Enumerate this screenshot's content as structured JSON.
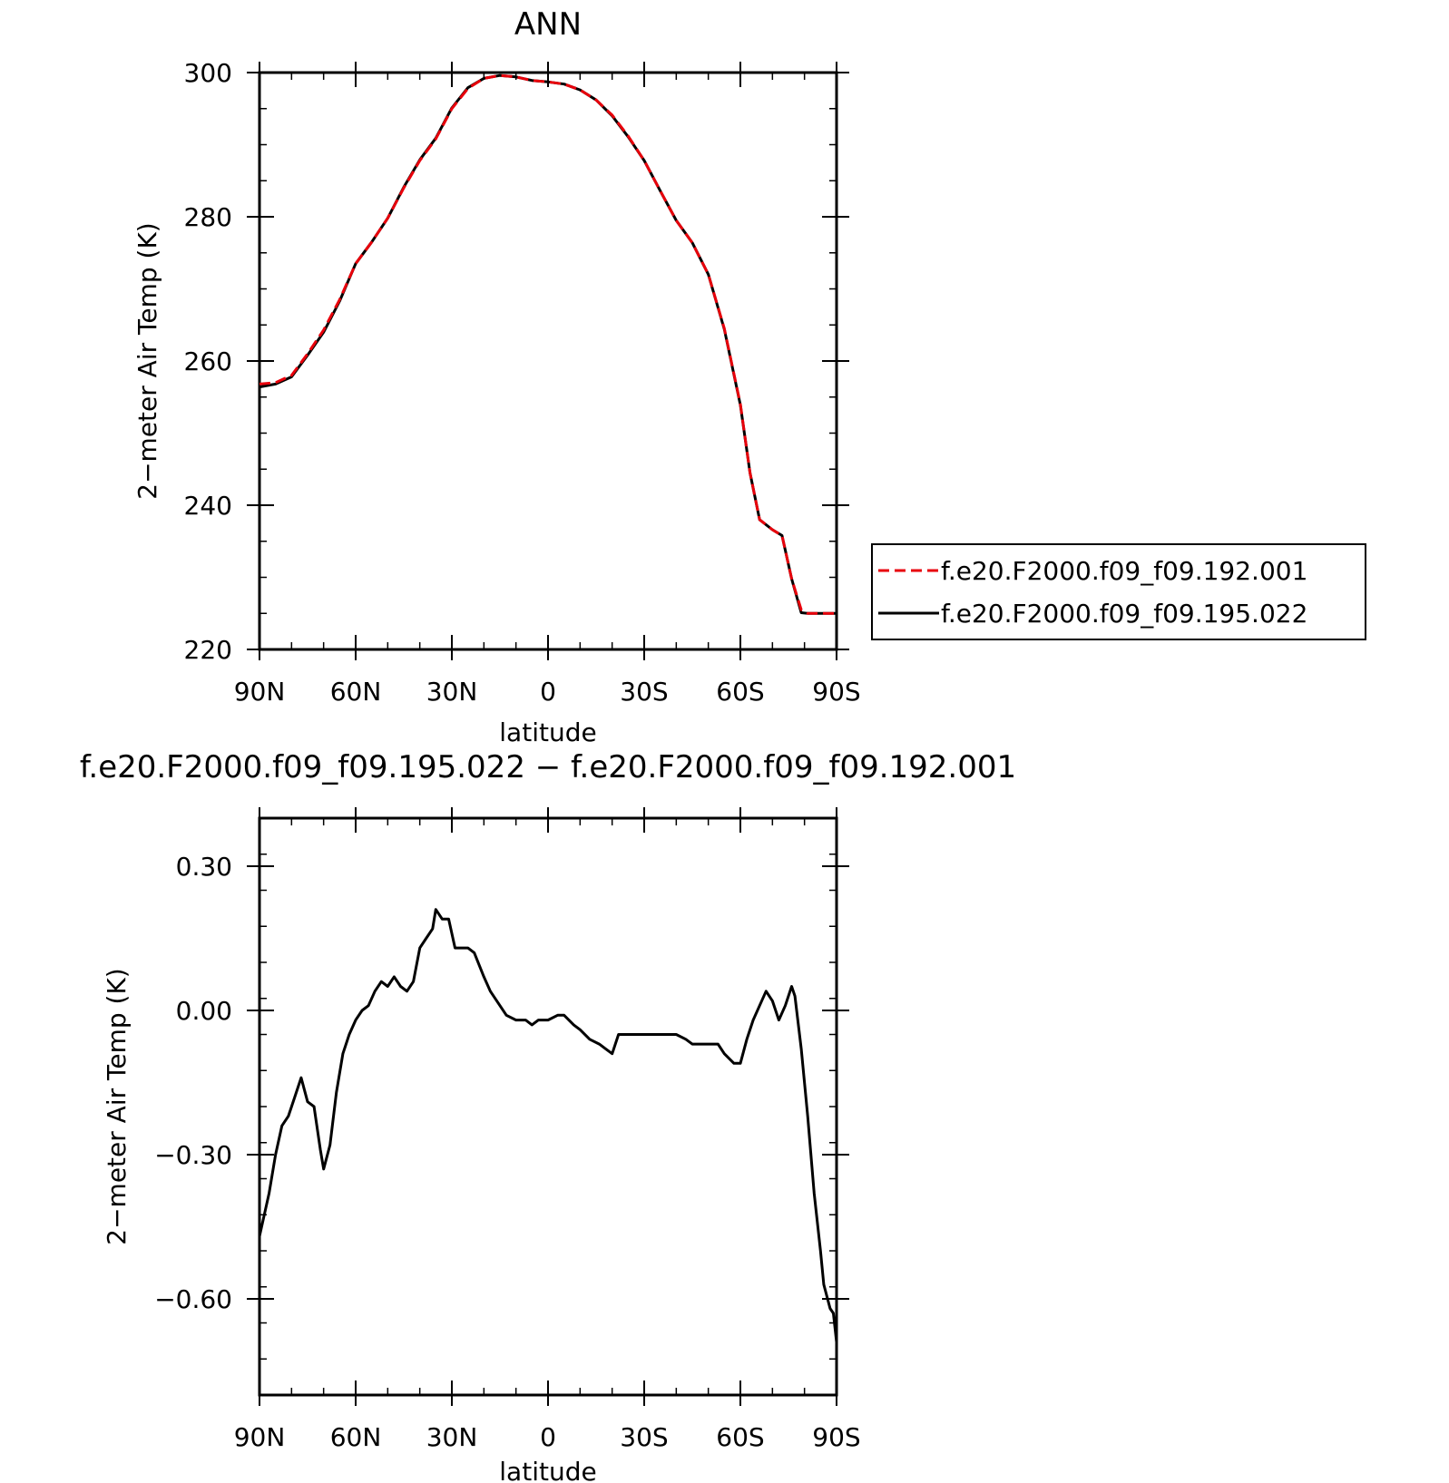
{
  "chart_data": [
    {
      "type": "line",
      "title": "ANN",
      "xlabel": "latitude",
      "ylabel": "2−meter Air Temp (K)",
      "x_tick_labels": [
        "90N",
        "60N",
        "30N",
        "0",
        "30S",
        "60S",
        "90S"
      ],
      "x_tick_values": [
        90,
        60,
        30,
        0,
        -30,
        -60,
        -90
      ],
      "xlim": [
        90,
        -90
      ],
      "ylim": [
        220,
        300
      ],
      "y_tick_values": [
        220,
        240,
        260,
        280,
        300
      ],
      "y_tick_labels": [
        "220",
        "240",
        "260",
        "280",
        "300"
      ],
      "grid": false,
      "legend_position": "outside-right",
      "x": [
        90,
        85,
        80,
        75,
        70,
        65,
        60,
        55,
        50,
        45,
        40,
        35,
        30,
        25,
        20,
        15,
        10,
        5,
        0,
        -5,
        -10,
        -15,
        -20,
        -25,
        -30,
        -35,
        -40,
        -45,
        -50,
        -55,
        -60,
        -63,
        -66,
        -70,
        -73,
        -76,
        -79,
        -81,
        -83,
        -85,
        -87,
        -90
      ],
      "series": [
        {
          "name": "f.e20.F2000.f09_f09.192.001",
          "color": "#e8000b",
          "dash": "dashed",
          "values": [
            256.8,
            257.0,
            258.0,
            261.0,
            264.3,
            268.5,
            273.5,
            276.5,
            279.8,
            284.0,
            287.8,
            290.8,
            295.0,
            297.8,
            299.2,
            299.6,
            299.4,
            298.9,
            298.7,
            298.4,
            297.6,
            296.2,
            294.1,
            291.2,
            287.8,
            283.6,
            279.5,
            276.4,
            272.0,
            264.5,
            254.0,
            244.5,
            238.0,
            236.6,
            235.8,
            229.8,
            225.5,
            225.0,
            225.0,
            225.0,
            225.0,
            225.0
          ]
        },
        {
          "name": "f.e20.F2000.f09_f09.195.022",
          "color": "#000000",
          "dash": "solid",
          "values": [
            256.4,
            256.8,
            257.8,
            260.8,
            264.0,
            268.3,
            273.5,
            276.5,
            279.8,
            284.1,
            287.9,
            290.9,
            295.1,
            297.9,
            299.2,
            299.6,
            299.4,
            298.9,
            298.7,
            298.4,
            297.6,
            296.2,
            294.0,
            291.1,
            287.8,
            283.6,
            279.5,
            276.4,
            272.0,
            264.4,
            253.9,
            244.5,
            238.0,
            236.6,
            235.8,
            229.8,
            225.1,
            225.0,
            225.0,
            225.0,
            225.0,
            225.0
          ]
        }
      ]
    },
    {
      "type": "line",
      "title": "f.e20.F2000.f09_f09.195.022 − f.e20.F2000.f09_f09.192.001",
      "xlabel": "latitude",
      "ylabel": "2−meter Air Temp (K)",
      "x_tick_labels": [
        "90N",
        "60N",
        "30N",
        "0",
        "30S",
        "60S",
        "90S"
      ],
      "x_tick_values": [
        90,
        60,
        30,
        0,
        -30,
        -60,
        -90
      ],
      "xlim": [
        90,
        -90
      ],
      "ylim": [
        -0.8,
        0.4
      ],
      "y_tick_values": [
        -0.6,
        -0.3,
        0.0,
        0.3
      ],
      "y_tick_labels": [
        "−0.60",
        "−0.30",
        "0.00",
        "0.30"
      ],
      "grid": false,
      "x": [
        90,
        87,
        85,
        83,
        81,
        79,
        77,
        75,
        73,
        71,
        70,
        68,
        66,
        64,
        62,
        60,
        58,
        56,
        54,
        52,
        50,
        48,
        46,
        44,
        42,
        40,
        38,
        36,
        35,
        33,
        31,
        29,
        27,
        25,
        23,
        20,
        18,
        15,
        13,
        10,
        7,
        5,
        3,
        0,
        -3,
        -5,
        -8,
        -10,
        -13,
        -16,
        -18,
        -20,
        -22,
        -25,
        -27,
        -30,
        -33,
        -35,
        -38,
        -40,
        -43,
        -45,
        -48,
        -50,
        -53,
        -55,
        -58,
        -60,
        -62,
        -64,
        -66,
        -68,
        -70,
        -72,
        -74,
        -76,
        -77,
        -79,
        -81,
        -83,
        -85,
        -86,
        -88,
        -89,
        -90
      ],
      "series": [
        {
          "name": "",
          "color": "#000000",
          "dash": "solid",
          "values": [
            -0.47,
            -0.38,
            -0.3,
            -0.24,
            -0.22,
            -0.18,
            -0.14,
            -0.19,
            -0.2,
            -0.29,
            -0.33,
            -0.28,
            -0.17,
            -0.09,
            -0.05,
            -0.02,
            0.0,
            0.01,
            0.04,
            0.06,
            0.05,
            0.07,
            0.05,
            0.04,
            0.06,
            0.13,
            0.15,
            0.17,
            0.21,
            0.19,
            0.19,
            0.13,
            0.13,
            0.13,
            0.12,
            0.07,
            0.04,
            0.01,
            -0.01,
            -0.02,
            -0.02,
            -0.03,
            -0.02,
            -0.02,
            -0.01,
            -0.01,
            -0.03,
            -0.04,
            -0.06,
            -0.07,
            -0.08,
            -0.09,
            -0.05,
            -0.05,
            -0.05,
            -0.05,
            -0.05,
            -0.05,
            -0.05,
            -0.05,
            -0.06,
            -0.07,
            -0.07,
            -0.07,
            -0.07,
            -0.09,
            -0.11,
            -0.11,
            -0.06,
            -0.02,
            0.01,
            0.04,
            0.02,
            -0.02,
            0.01,
            0.05,
            0.03,
            -0.08,
            -0.22,
            -0.38,
            -0.5,
            -0.57,
            -0.62,
            -0.63,
            -0.69
          ]
        }
      ]
    }
  ]
}
